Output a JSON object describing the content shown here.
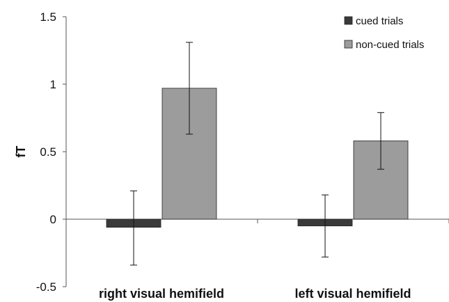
{
  "chart_data": {
    "type": "bar",
    "title": "",
    "xlabel": "",
    "ylabel": "fT",
    "categories": [
      "right visual hemifield",
      "left visual hemifield"
    ],
    "series": [
      {
        "name": "cued trials",
        "color": "#3a3a3a",
        "values": [
          -0.06,
          -0.05
        ],
        "error_low": [
          -0.34,
          -0.28
        ],
        "error_high": [
          0.21,
          0.18
        ]
      },
      {
        "name": "non-cued trials",
        "color": "#9c9c9c",
        "values": [
          0.97,
          0.58
        ],
        "error_low": [
          0.63,
          0.37
        ],
        "error_high": [
          1.31,
          0.79
        ]
      }
    ],
    "ylim": [
      -0.5,
      1.5
    ],
    "yticks": [
      "-0.5",
      "0",
      "0.5",
      "1",
      "1.5"
    ],
    "ytick_values": [
      -0.5,
      0,
      0.5,
      1,
      1.5
    ],
    "grid": false,
    "legend_position": "top-right"
  }
}
